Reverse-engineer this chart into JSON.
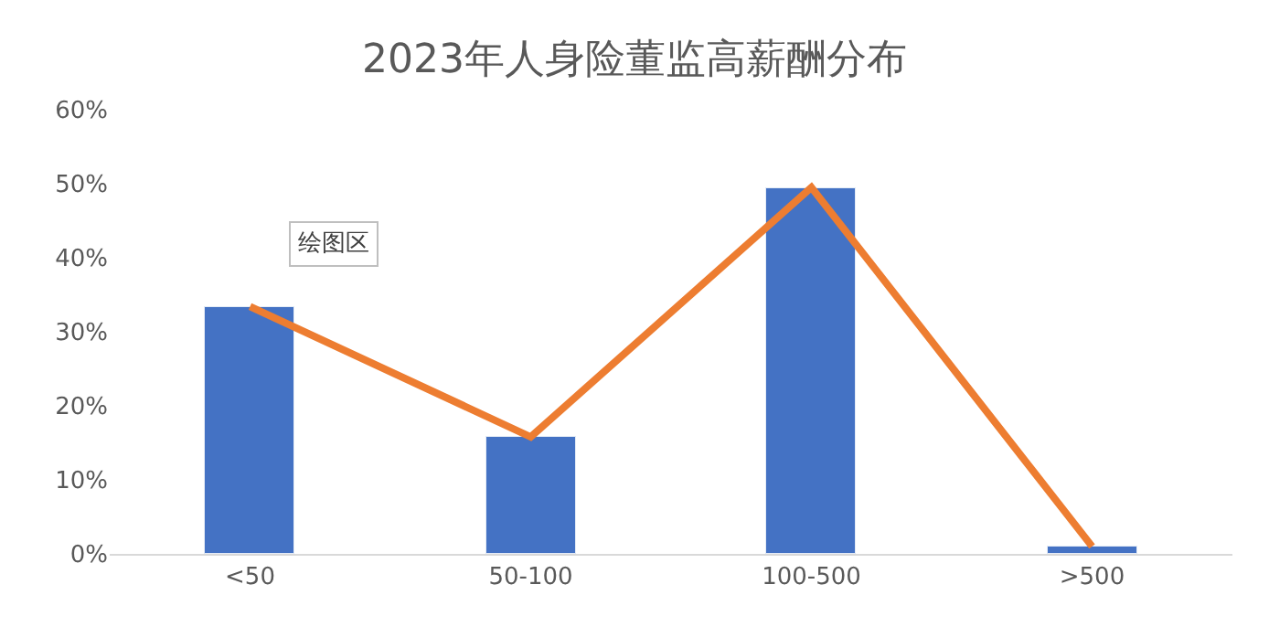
{
  "chart_data": {
    "type": "bar",
    "title": "2023年人身险董监高薪酬分布",
    "categories": [
      "<50",
      "50-100",
      "100-500",
      ">500"
    ],
    "series": [
      {
        "color": "#4472c4",
        "values": [
          33.4,
          15.8,
          49.5,
          1.0
        ]
      },
      {
        "type": "line",
        "color": "#ed7d31",
        "values": [
          33.4,
          15.8,
          49.5,
          1.0
        ]
      }
    ],
    "ylim": [
      0,
      60
    ],
    "yticks": [
      {
        "value": 0,
        "label": "0%"
      },
      {
        "value": 10,
        "label": "10%"
      },
      {
        "value": 20,
        "label": "20%"
      },
      {
        "value": 30,
        "label": "30%"
      },
      {
        "value": 40,
        "label": "40%"
      },
      {
        "value": 50,
        "label": "50%"
      },
      {
        "value": 60,
        "label": "60%"
      }
    ],
    "grid": false,
    "legend": false,
    "marker": "none",
    "line_style": "solid",
    "annotations": [
      "绘图区"
    ]
  }
}
